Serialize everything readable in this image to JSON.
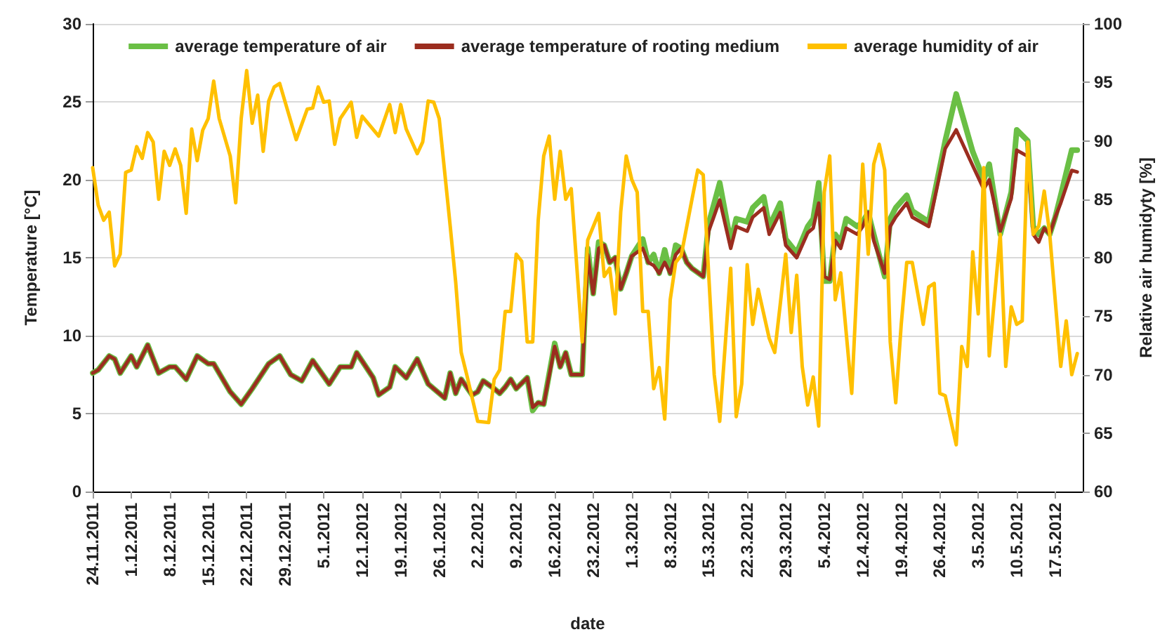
{
  "chart_data": {
    "type": "line",
    "xlabel": "date",
    "ylabel": "Temperature [°C]",
    "y2label": "Relative air humidyty [%]",
    "xlim": [
      "2011-11-24",
      "2012-05-22"
    ],
    "xticks": [
      {
        "value": "2011-11-24",
        "label": "24.11.2011"
      },
      {
        "value": "2011-12-01",
        "label": "1.12.2011"
      },
      {
        "value": "2011-12-08",
        "label": "8.12.2011"
      },
      {
        "value": "2011-12-15",
        "label": "15.12.2011"
      },
      {
        "value": "2011-12-22",
        "label": "22.12.2011"
      },
      {
        "value": "2011-12-29",
        "label": "29.12.2011"
      },
      {
        "value": "2012-01-05",
        "label": "5.1.2012"
      },
      {
        "value": "2012-01-12",
        "label": "12.1.2012"
      },
      {
        "value": "2012-01-19",
        "label": "19.1.2012"
      },
      {
        "value": "2012-01-26",
        "label": "26.1.2012"
      },
      {
        "value": "2012-02-02",
        "label": "2.2.2012"
      },
      {
        "value": "2012-02-09",
        "label": "9.2.2012"
      },
      {
        "value": "2012-02-16",
        "label": "16.2.2012"
      },
      {
        "value": "2012-02-23",
        "label": "23.2.2012"
      },
      {
        "value": "2012-03-01",
        "label": "1.3.2012"
      },
      {
        "value": "2012-03-08",
        "label": "8.3.2012"
      },
      {
        "value": "2012-03-15",
        "label": "15.3.2012"
      },
      {
        "value": "2012-03-22",
        "label": "22.3.2012"
      },
      {
        "value": "2012-03-29",
        "label": "29.3.2012"
      },
      {
        "value": "2012-04-05",
        "label": "5.4.2012"
      },
      {
        "value": "2012-04-12",
        "label": "12.4.2012"
      },
      {
        "value": "2012-04-19",
        "label": "19.4.2012"
      },
      {
        "value": "2012-04-26",
        "label": "26.4.2012"
      },
      {
        "value": "2012-05-03",
        "label": "3.5.2012"
      },
      {
        "value": "2012-05-10",
        "label": "10.5.2012"
      },
      {
        "value": "2012-05-17",
        "label": "17.5.2012"
      }
    ],
    "ylim": [
      0,
      30
    ],
    "yticks": [
      0,
      5,
      10,
      15,
      20,
      25,
      30
    ],
    "y2lim": [
      60,
      100
    ],
    "y2ticks": [
      60,
      65,
      70,
      75,
      80,
      85,
      90,
      95,
      100
    ],
    "grid": "y",
    "legend": "top",
    "marker": "none",
    "line_style": "solid",
    "series": [
      {
        "name": "average temperature of air",
        "color": "#6abf45",
        "x": [
          "2011-11-24",
          "2011-11-25",
          "2011-11-27",
          "2011-11-28",
          "2011-11-29",
          "2011-12-01",
          "2011-12-02",
          "2011-12-04",
          "2011-12-06",
          "2011-12-08",
          "2011-12-09",
          "2011-12-11",
          "2011-12-13",
          "2011-12-15",
          "2011-12-16",
          "2011-12-19",
          "2011-12-21",
          "2011-12-23",
          "2011-12-26",
          "2011-12-28",
          "2011-12-30",
          "2012-01-01",
          "2012-01-03",
          "2012-01-06",
          "2012-01-08",
          "2012-01-10",
          "2012-01-11",
          "2012-01-14",
          "2012-01-15",
          "2012-01-17",
          "2012-01-18",
          "2012-01-20",
          "2012-01-22",
          "2012-01-24",
          "2012-01-25",
          "2012-01-27",
          "2012-01-28",
          "2012-01-29",
          "2012-01-30",
          "2012-02-01",
          "2012-02-02",
          "2012-02-03",
          "2012-02-05",
          "2012-02-06",
          "2012-02-07",
          "2012-02-08",
          "2012-02-09",
          "2012-02-11",
          "2012-02-12",
          "2012-02-13",
          "2012-02-14",
          "2012-02-16",
          "2012-02-17",
          "2012-02-18",
          "2012-02-19",
          "2012-02-21",
          "2012-02-22",
          "2012-02-23",
          "2012-02-24",
          "2012-02-25",
          "2012-02-26",
          "2012-02-27",
          "2012-02-28",
          "2012-02-29",
          "2012-03-01",
          "2012-03-03",
          "2012-03-04",
          "2012-03-05",
          "2012-03-06",
          "2012-03-07",
          "2012-03-08",
          "2012-03-09",
          "2012-03-10",
          "2012-03-11",
          "2012-03-12",
          "2012-03-14",
          "2012-03-15",
          "2012-03-17",
          "2012-03-19",
          "2012-03-20",
          "2012-03-22",
          "2012-03-23",
          "2012-03-25",
          "2012-03-26",
          "2012-03-28",
          "2012-03-29",
          "2012-03-31",
          "2012-04-02",
          "2012-04-03",
          "2012-04-04",
          "2012-04-05",
          "2012-04-06",
          "2012-04-07",
          "2012-04-08",
          "2012-04-09",
          "2012-04-11",
          "2012-04-12",
          "2012-04-13",
          "2012-04-14",
          "2012-04-16",
          "2012-04-17",
          "2012-04-18",
          "2012-04-20",
          "2012-04-21",
          "2012-04-24",
          "2012-04-27",
          "2012-04-29",
          "2012-05-02",
          "2012-05-04",
          "2012-05-05",
          "2012-05-07",
          "2012-05-09",
          "2012-05-10",
          "2012-05-12",
          "2012-05-13",
          "2012-05-14",
          "2012-05-15",
          "2012-05-16",
          "2012-05-17",
          "2012-05-18",
          "2012-05-20",
          "2012-05-21"
        ],
        "values": [
          7.6,
          7.8,
          8.7,
          8.5,
          7.6,
          8.7,
          8.0,
          9.4,
          7.6,
          8.0,
          8.0,
          7.2,
          8.7,
          8.2,
          8.2,
          6.4,
          5.6,
          6.6,
          8.2,
          8.7,
          7.5,
          7.1,
          8.4,
          6.9,
          8.0,
          8.0,
          8.9,
          7.3,
          6.2,
          6.7,
          8.0,
          7.3,
          8.5,
          6.9,
          6.6,
          6.0,
          7.6,
          6.3,
          7.2,
          6.2,
          6.4,
          7.1,
          6.6,
          6.3,
          6.7,
          7.2,
          6.6,
          7.3,
          5.2,
          5.7,
          5.6,
          9.5,
          8.0,
          8.9,
          7.5,
          7.5,
          15.6,
          12.7,
          16.0,
          15.8,
          14.7,
          15.0,
          13.0,
          14.0,
          15.1,
          16.2,
          14.7,
          15.2,
          14.0,
          15.5,
          14.0,
          15.8,
          15.6,
          14.7,
          14.3,
          13.8,
          17.2,
          19.8,
          16.0,
          17.5,
          17.3,
          18.2,
          18.9,
          17.0,
          18.5,
          16.2,
          15.3,
          17.0,
          17.5,
          19.8,
          13.5,
          13.5,
          16.5,
          16.0,
          17.5,
          17.0,
          17.3,
          17.9,
          16.5,
          13.8,
          17.5,
          18.2,
          19.0,
          18.0,
          17.3,
          22.5,
          25.5,
          21.8,
          20.0,
          21.0,
          16.5,
          19.2,
          23.2,
          22.5,
          17.0,
          16.5,
          16.9,
          16.5,
          17.6,
          19.0,
          21.9,
          21.9
        ]
      },
      {
        "name": "average temperature of rooting medium",
        "color": "#9b2d1f",
        "x": [
          "2011-11-24",
          "2011-11-25",
          "2011-11-27",
          "2011-11-28",
          "2011-11-29",
          "2011-12-01",
          "2011-12-02",
          "2011-12-04",
          "2011-12-06",
          "2011-12-08",
          "2011-12-09",
          "2011-12-11",
          "2011-12-13",
          "2011-12-15",
          "2011-12-16",
          "2011-12-19",
          "2011-12-21",
          "2011-12-23",
          "2011-12-26",
          "2011-12-28",
          "2011-12-30",
          "2012-01-01",
          "2012-01-03",
          "2012-01-06",
          "2012-01-08",
          "2012-01-10",
          "2012-01-11",
          "2012-01-14",
          "2012-01-15",
          "2012-01-17",
          "2012-01-18",
          "2012-01-20",
          "2012-01-22",
          "2012-01-24",
          "2012-01-25",
          "2012-01-27",
          "2012-01-28",
          "2012-01-29",
          "2012-01-30",
          "2012-02-01",
          "2012-02-02",
          "2012-02-03",
          "2012-02-05",
          "2012-02-06",
          "2012-02-07",
          "2012-02-08",
          "2012-02-09",
          "2012-02-11",
          "2012-02-12",
          "2012-02-13",
          "2012-02-14",
          "2012-02-16",
          "2012-02-17",
          "2012-02-18",
          "2012-02-19",
          "2012-02-21",
          "2012-02-22",
          "2012-02-23",
          "2012-02-24",
          "2012-02-25",
          "2012-02-26",
          "2012-02-27",
          "2012-02-28",
          "2012-02-29",
          "2012-03-01",
          "2012-03-03",
          "2012-03-04",
          "2012-03-05",
          "2012-03-06",
          "2012-03-07",
          "2012-03-08",
          "2012-03-09",
          "2012-03-10",
          "2012-03-11",
          "2012-03-12",
          "2012-03-14",
          "2012-03-15",
          "2012-03-17",
          "2012-03-19",
          "2012-03-20",
          "2012-03-22",
          "2012-03-23",
          "2012-03-25",
          "2012-03-26",
          "2012-03-28",
          "2012-03-29",
          "2012-03-31",
          "2012-04-02",
          "2012-04-03",
          "2012-04-04",
          "2012-04-05",
          "2012-04-06",
          "2012-04-07",
          "2012-04-08",
          "2012-04-09",
          "2012-04-11",
          "2012-04-12",
          "2012-04-13",
          "2012-04-14",
          "2012-04-16",
          "2012-04-17",
          "2012-04-18",
          "2012-04-20",
          "2012-04-21",
          "2012-04-24",
          "2012-04-27",
          "2012-04-29",
          "2012-05-02",
          "2012-05-04",
          "2012-05-05",
          "2012-05-07",
          "2012-05-09",
          "2012-05-10",
          "2012-05-12",
          "2012-05-13",
          "2012-05-14",
          "2012-05-15",
          "2012-05-16",
          "2012-05-17",
          "2012-05-18",
          "2012-05-20",
          "2012-05-21"
        ],
        "values": [
          7.6,
          7.8,
          8.7,
          8.5,
          7.6,
          8.7,
          8.0,
          9.4,
          7.6,
          8.0,
          8.0,
          7.2,
          8.7,
          8.2,
          8.2,
          6.4,
          5.6,
          6.6,
          8.2,
          8.7,
          7.5,
          7.1,
          8.4,
          6.9,
          8.0,
          8.0,
          8.9,
          7.3,
          6.2,
          6.7,
          8.0,
          7.3,
          8.5,
          6.9,
          6.6,
          6.0,
          7.6,
          6.3,
          7.2,
          6.2,
          6.4,
          7.1,
          6.6,
          6.3,
          6.7,
          7.2,
          6.6,
          7.3,
          5.4,
          5.7,
          5.6,
          9.3,
          8.0,
          8.9,
          7.5,
          7.5,
          15.2,
          12.7,
          15.6,
          15.8,
          14.7,
          15.0,
          13.0,
          14.0,
          15.1,
          15.6,
          14.7,
          14.5,
          14.0,
          14.7,
          14.0,
          15.2,
          15.6,
          14.7,
          14.3,
          13.8,
          16.7,
          18.7,
          15.6,
          17.0,
          16.7,
          17.6,
          18.2,
          16.5,
          17.9,
          15.8,
          15.0,
          16.6,
          16.9,
          18.5,
          13.8,
          13.6,
          16.1,
          15.6,
          16.9,
          16.5,
          17.0,
          17.9,
          16.1,
          14.0,
          17.0,
          17.6,
          18.5,
          17.6,
          17.0,
          22.0,
          23.2,
          20.9,
          19.4,
          20.0,
          16.7,
          18.8,
          21.9,
          21.5,
          16.5,
          16.0,
          16.9,
          16.5,
          17.6,
          18.5,
          20.6,
          20.5
        ]
      },
      {
        "name": "average humidity of air",
        "color": "#ffc000",
        "axis": "y2",
        "x": [
          "2011-11-24",
          "2011-11-25",
          "2011-11-26",
          "2011-11-27",
          "2011-11-28",
          "2011-11-29",
          "2011-11-30",
          "2011-12-01",
          "2011-12-02",
          "2011-12-03",
          "2011-12-04",
          "2011-12-05",
          "2011-12-06",
          "2011-12-07",
          "2011-12-08",
          "2011-12-09",
          "2011-12-10",
          "2011-12-11",
          "2011-12-12",
          "2011-12-13",
          "2011-12-14",
          "2011-12-15",
          "2011-12-16",
          "2011-12-17",
          "2011-12-19",
          "2011-12-20",
          "2011-12-21",
          "2011-12-22",
          "2011-12-23",
          "2011-12-24",
          "2011-12-25",
          "2011-12-26",
          "2011-12-27",
          "2011-12-28",
          "2011-12-31",
          "2012-01-02",
          "2012-01-03",
          "2012-01-04",
          "2012-01-05",
          "2012-01-06",
          "2012-01-07",
          "2012-01-08",
          "2012-01-10",
          "2012-01-11",
          "2012-01-12",
          "2012-01-15",
          "2012-01-17",
          "2012-01-18",
          "2012-01-19",
          "2012-01-20",
          "2012-01-22",
          "2012-01-23",
          "2012-01-24",
          "2012-01-25",
          "2012-01-26",
          "2012-01-28",
          "2012-01-29",
          "2012-01-30",
          "2012-01-31",
          "2012-02-02",
          "2012-02-04",
          "2012-02-05",
          "2012-02-06",
          "2012-02-07",
          "2012-02-08",
          "2012-02-09",
          "2012-02-10",
          "2012-02-11",
          "2012-02-12",
          "2012-02-13",
          "2012-02-14",
          "2012-02-15",
          "2012-02-16",
          "2012-02-17",
          "2012-02-18",
          "2012-02-19",
          "2012-02-21",
          "2012-02-22",
          "2012-02-24",
          "2012-02-25",
          "2012-02-26",
          "2012-02-27",
          "2012-02-28",
          "2012-02-29",
          "2012-03-01",
          "2012-03-02",
          "2012-03-03",
          "2012-03-04",
          "2012-03-05",
          "2012-03-06",
          "2012-03-07",
          "2012-03-08",
          "2012-03-09",
          "2012-03-10",
          "2012-03-12",
          "2012-03-13",
          "2012-03-14",
          "2012-03-16",
          "2012-03-17",
          "2012-03-19",
          "2012-03-20",
          "2012-03-21",
          "2012-03-22",
          "2012-03-23",
          "2012-03-24",
          "2012-03-26",
          "2012-03-27",
          "2012-03-28",
          "2012-03-29",
          "2012-03-30",
          "2012-03-31",
          "2012-04-01",
          "2012-04-02",
          "2012-04-03",
          "2012-04-04",
          "2012-04-05",
          "2012-04-06",
          "2012-04-07",
          "2012-04-08",
          "2012-04-10",
          "2012-04-12",
          "2012-04-13",
          "2012-04-14",
          "2012-04-15",
          "2012-04-16",
          "2012-04-17",
          "2012-04-18",
          "2012-04-19",
          "2012-04-20",
          "2012-04-21",
          "2012-04-23",
          "2012-04-24",
          "2012-04-25",
          "2012-04-26",
          "2012-04-27",
          "2012-04-29",
          "2012-04-30",
          "2012-05-01",
          "2012-05-02",
          "2012-05-03",
          "2012-05-04",
          "2012-05-05",
          "2012-05-07",
          "2012-05-08",
          "2012-05-09",
          "2012-05-10",
          "2012-05-11",
          "2012-05-12",
          "2012-05-13",
          "2012-05-14",
          "2012-05-15",
          "2012-05-16",
          "2012-05-18",
          "2012-05-19",
          "2012-05-20",
          "2012-05-21"
        ],
        "values": [
          87.7,
          84.5,
          83.2,
          83.9,
          79.3,
          80.3,
          87.3,
          87.5,
          89.5,
          88.5,
          90.7,
          89.9,
          85.0,
          89.1,
          87.9,
          89.3,
          87.9,
          83.8,
          91.0,
          88.3,
          90.9,
          91.9,
          95.1,
          91.9,
          88.7,
          84.7,
          91.9,
          96.0,
          91.5,
          93.9,
          89.1,
          93.4,
          94.6,
          94.9,
          90.1,
          92.7,
          92.8,
          94.6,
          93.3,
          93.4,
          89.7,
          91.9,
          93.3,
          90.3,
          92.1,
          90.4,
          93.1,
          90.7,
          93.1,
          91.0,
          88.9,
          89.9,
          93.4,
          93.3,
          91.9,
          82.7,
          77.9,
          71.9,
          70.0,
          66.0,
          65.9,
          69.6,
          70.4,
          75.4,
          75.4,
          80.3,
          79.7,
          72.8,
          72.8,
          83.2,
          88.7,
          90.4,
          85.0,
          89.1,
          85.0,
          85.9,
          72.8,
          81.5,
          83.8,
          78.4,
          79.1,
          75.2,
          83.9,
          88.7,
          86.7,
          85.6,
          75.4,
          75.4,
          68.8,
          70.6,
          66.2,
          76.4,
          79.6,
          80.2,
          85.1,
          87.5,
          87.1,
          70.0,
          66.0,
          79.1,
          66.4,
          69.2,
          79.4,
          74.3,
          77.3,
          73.1,
          71.9,
          76.0,
          80.3,
          73.6,
          78.5,
          70.7,
          67.4,
          69.8,
          65.6,
          85.6,
          88.7,
          76.4,
          78.7,
          68.4,
          88.0,
          80.3,
          88.0,
          89.7,
          87.5,
          72.8,
          67.6,
          74.3,
          79.6,
          79.6,
          74.3,
          77.5,
          77.8,
          68.4,
          68.2,
          64.0,
          72.4,
          70.7,
          80.5,
          75.2,
          87.7,
          71.6,
          82.0,
          70.7,
          75.8,
          74.3,
          74.6,
          89.9,
          82.0,
          82.7,
          85.7,
          82.0,
          70.7,
          74.6,
          70.0,
          71.8
        ]
      }
    ]
  }
}
